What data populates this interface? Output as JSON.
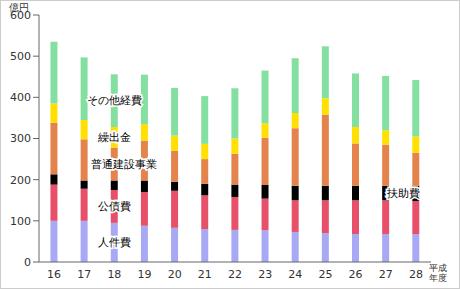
{
  "chart_data": {
    "type": "bar",
    "stacked": true,
    "grid": false,
    "y_label": "億円",
    "x_label": "平成年度",
    "categories": [
      "16",
      "17",
      "18",
      "19",
      "20",
      "21",
      "22",
      "23",
      "24",
      "25",
      "26",
      "27",
      "28"
    ],
    "ylim": [
      0,
      600
    ],
    "yticks": [
      0,
      100,
      200,
      300,
      400,
      500,
      600
    ],
    "series": [
      {
        "name": "人件費",
        "color": "#a8a8f4",
        "values": [
          100,
          100,
          95,
          88,
          83,
          80,
          78,
          77,
          73,
          70,
          68,
          68,
          68
        ]
      },
      {
        "name": "公債費",
        "color": "#e8506a",
        "values": [
          88,
          78,
          80,
          82,
          90,
          82,
          80,
          77,
          77,
          80,
          82,
          82,
          80
        ]
      },
      {
        "name": "扶助費",
        "color": "#000000",
        "values": [
          25,
          20,
          23,
          28,
          22,
          28,
          30,
          33,
          35,
          35,
          35,
          35,
          37
        ]
      },
      {
        "name": "普通建設事業",
        "color": "#e4844c",
        "values": [
          125,
          100,
          80,
          97,
          75,
          60,
          75,
          115,
          140,
          173,
          103,
          100,
          80
        ]
      },
      {
        "name": "繰出金",
        "color": "#ffe000",
        "values": [
          47,
          47,
          50,
          40,
          37,
          37,
          37,
          35,
          37,
          40,
          40,
          35,
          40
        ]
      },
      {
        "name": "その他経費",
        "color": "#84e0a0",
        "values": [
          150,
          152,
          128,
          120,
          116,
          116,
          122,
          128,
          133,
          126,
          130,
          132,
          137
        ]
      }
    ]
  }
}
